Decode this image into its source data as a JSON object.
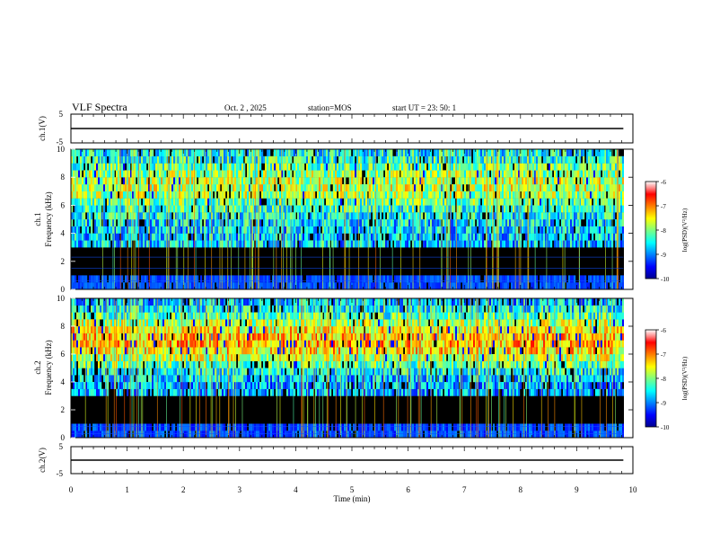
{
  "header": {
    "title": "VLF Spectra",
    "date": "Oct. 2 , 2025",
    "station": "station=MOS",
    "start": "start UT =  23: 50: 1"
  },
  "chart_data": [
    {
      "type": "line",
      "name": "ch1-waveform",
      "ylabel": "ch.1(V)",
      "ylim": [
        -5,
        5
      ],
      "yticks": [
        "5",
        "-5"
      ],
      "xlim": [
        0,
        10
      ],
      "x": [
        0,
        9.83
      ],
      "y": [
        0,
        0
      ]
    },
    {
      "type": "heatmap",
      "name": "ch1-spectrogram",
      "ylabel_line1": "ch.1",
      "ylabel_line2": "Frequency (kHz)",
      "ylim": [
        0,
        10
      ],
      "yticks": [
        "0",
        "2",
        "4",
        "6",
        "8",
        "10"
      ],
      "xlim": [
        0,
        10
      ],
      "data_end_min": 9.83,
      "band_khz": [
        3,
        9.5
      ],
      "colorbar": {
        "label": "log(PSD)(V²/Hz)",
        "range": [
          -10,
          -6
        ],
        "ticks": [
          "-6",
          "-7",
          "-8",
          "-9",
          "-10"
        ]
      }
    },
    {
      "type": "heatmap",
      "name": "ch2-spectrogram",
      "ylabel_line1": "ch.2",
      "ylabel_line2": "Frequency (kHz)",
      "ylim": [
        0,
        10
      ],
      "yticks": [
        "0",
        "2",
        "4",
        "6",
        "8",
        "10"
      ],
      "xlim": [
        0,
        10
      ],
      "data_end_min": 9.83,
      "band_khz": [
        3,
        10
      ],
      "peak_khz": 6.7,
      "colorbar": {
        "label": "log(PSD)(V²/Hz)",
        "range": [
          -10,
          -6
        ],
        "ticks": [
          "-6",
          "-7",
          "-8",
          "-9",
          "-10"
        ]
      }
    },
    {
      "type": "line",
      "name": "ch2-waveform",
      "ylabel": "ch.2(V)",
      "ylim": [
        -5,
        5
      ],
      "yticks": [
        "5",
        "-5"
      ],
      "xlim": [
        0,
        10
      ],
      "x": [
        0,
        9.83
      ],
      "y": [
        0,
        0
      ]
    }
  ],
  "xaxis": {
    "label": "Time (min)",
    "ticks": [
      "0",
      "1",
      "2",
      "3",
      "4",
      "5",
      "6",
      "7",
      "8",
      "9",
      "10"
    ]
  }
}
